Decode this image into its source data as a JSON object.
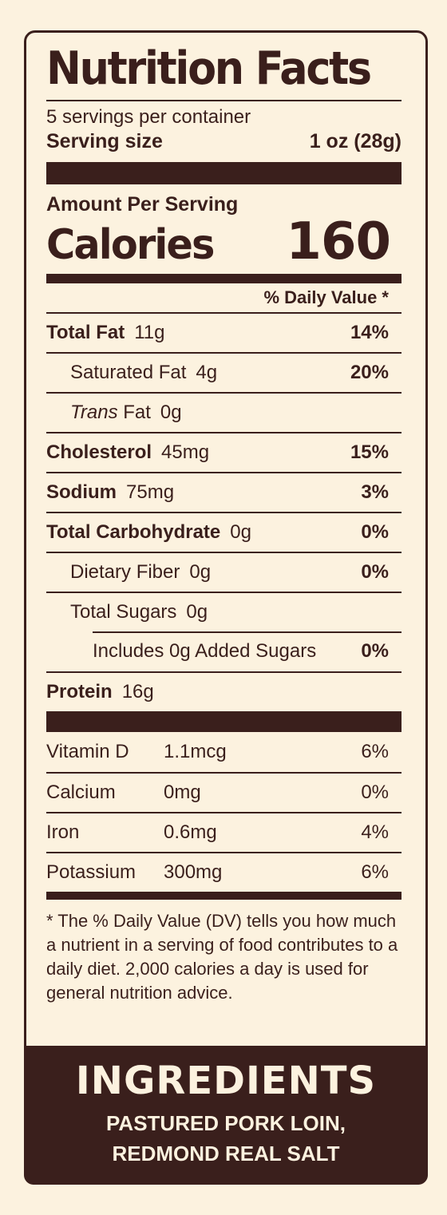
{
  "title": "Nutrition Facts",
  "servings": "5 servings per container",
  "serving_size_label": "Serving size",
  "serving_size_value": "1 oz (28g)",
  "amount_per_serving": "Amount Per Serving",
  "calories_label": "Calories",
  "calories_value": "160",
  "daily_value_header": "% Daily Value *",
  "nutrients": [
    {
      "name": "Total Fat",
      "amount": "11g",
      "dv": "14%"
    },
    {
      "name": "Saturated Fat",
      "amount": "4g",
      "dv": "20%"
    },
    {
      "name_italic": "Trans",
      "name_rest": " Fat",
      "amount": "0g"
    },
    {
      "name": "Cholesterol",
      "amount": "45mg",
      "dv": "15%"
    },
    {
      "name": "Sodium",
      "amount": "75mg",
      "dv": "3%"
    },
    {
      "name": "Total Carbohydrate",
      "amount": "0g",
      "dv": "0%"
    },
    {
      "name": "Dietary Fiber",
      "amount": "0g",
      "dv": "0%"
    },
    {
      "name": "Total Sugars",
      "amount": "0g"
    },
    {
      "name": "Includes 0g Added Sugars",
      "dv": "0%"
    },
    {
      "name": "Protein",
      "amount": "16g"
    }
  ],
  "vitamins": [
    {
      "name": "Vitamin D",
      "amount": "1.1mcg",
      "dv": "6%"
    },
    {
      "name": "Calcium",
      "amount": "0mg",
      "dv": "0%"
    },
    {
      "name": "Iron",
      "amount": "0.6mg",
      "dv": "4%"
    },
    {
      "name": "Potassium",
      "amount": "300mg",
      "dv": "6%"
    }
  ],
  "footnote": "* The % Daily Value (DV) tells you how much a nutrient in a serving of food contributes to a daily diet. 2,000 calories a day is used for general nutrition advice.",
  "ingredients_title": "INGREDIENTS",
  "ingredients_line1": "PASTURED PORK LOIN,",
  "ingredients_line2": "REDMOND REAL SALT",
  "colors": {
    "ink": "#3a1f1c",
    "paper": "#fcf2df"
  }
}
